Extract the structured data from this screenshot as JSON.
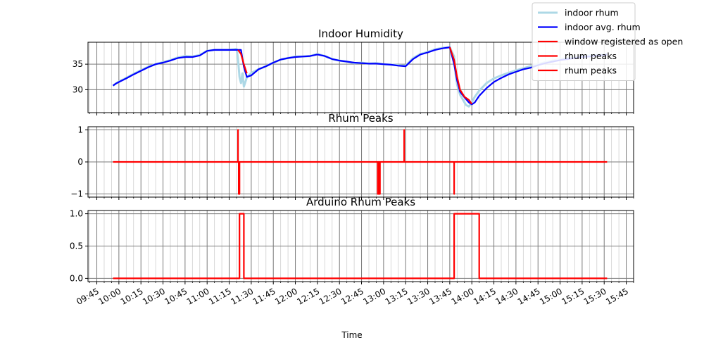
{
  "figure": {
    "xlabel": "Time",
    "x_ticks": [
      "09:45",
      "10:00",
      "10:15",
      "10:30",
      "10:45",
      "11:00",
      "11:15",
      "11:30",
      "11:45",
      "12:00",
      "12:15",
      "12:30",
      "12:45",
      "13:00",
      "13:15",
      "13:30",
      "13:45",
      "14:00",
      "14:15",
      "14:30",
      "14:45",
      "15:00",
      "15:15",
      "15:30",
      "15:45"
    ],
    "xlim": [
      "09:39",
      "15:50"
    ],
    "grid": true,
    "legend": {
      "placement": "top-right",
      "entries": [
        {
          "label": "indoor rhum",
          "color": "#add8e6"
        },
        {
          "label": "indoor avg. rhum",
          "color": "#0000ff"
        },
        {
          "label": "window registered as open",
          "color": "#ff0000"
        },
        {
          "label": "rhum peaks",
          "color": "#ff0000"
        },
        {
          "label": "rhum peaks",
          "color": "#ff0000"
        }
      ]
    }
  },
  "chart_data": [
    {
      "type": "line",
      "title": "Indoor Humidity",
      "ylim": [
        25.5,
        39.3
      ],
      "yticks": [
        30,
        35
      ],
      "ytick_labels": [
        "30",
        "35"
      ],
      "series": [
        {
          "name": "indoor rhum",
          "color": "#add8e6",
          "x": [
            "09:56",
            "09:58",
            "10:00",
            "10:05",
            "10:10",
            "10:15",
            "10:20",
            "10:25",
            "10:30",
            "10:35",
            "10:40",
            "10:45",
            "10:50",
            "10:55",
            "11:00",
            "11:05",
            "11:10",
            "11:15",
            "11:18",
            "11:20",
            "11:21",
            "11:22",
            "11:23",
            "11:24",
            "11:25",
            "11:27",
            "11:30",
            "11:35",
            "11:40",
            "11:45",
            "11:50",
            "11:55",
            "12:00",
            "12:05",
            "12:10",
            "12:15",
            "12:20",
            "12:25",
            "12:30",
            "12:35",
            "12:40",
            "12:45",
            "12:50",
            "12:55",
            "13:00",
            "13:05",
            "13:10",
            "13:15",
            "13:20",
            "13:25",
            "13:30",
            "13:35",
            "13:40",
            "13:45",
            "13:48",
            "13:49",
            "13:50",
            "13:51",
            "13:52",
            "13:54",
            "13:56",
            "13:58",
            "14:00",
            "14:02",
            "14:05",
            "14:10",
            "14:15",
            "14:20",
            "14:25",
            "14:30",
            "14:35",
            "14:40",
            "14:45",
            "14:50",
            "14:55",
            "15:00",
            "15:05",
            "15:10",
            "15:15",
            "15:20",
            "15:25",
            "15:30",
            "15:32"
          ],
          "values": [
            30.8,
            31.2,
            31.6,
            32.3,
            33.1,
            33.8,
            34.5,
            35.0,
            35.4,
            35.8,
            36.3,
            36.6,
            36.5,
            36.8,
            37.6,
            37.8,
            37.8,
            37.8,
            37.9,
            38.0,
            36.0,
            32.5,
            31.3,
            33.2,
            30.6,
            32.4,
            33.3,
            34.0,
            34.6,
            35.3,
            35.9,
            36.2,
            36.5,
            36.5,
            36.6,
            37.0,
            36.6,
            36.0,
            35.7,
            35.5,
            35.2,
            35.3,
            35.1,
            35.2,
            35.0,
            34.9,
            34.8,
            34.7,
            36.2,
            37.0,
            37.4,
            37.9,
            38.2,
            38.3,
            36.5,
            33.0,
            31.0,
            30.0,
            29.0,
            28.0,
            27.0,
            26.7,
            27.5,
            28.6,
            29.8,
            31.3,
            32.2,
            32.8,
            33.3,
            33.8,
            34.2,
            34.6,
            35.0,
            35.4,
            35.7,
            36.0,
            36.2,
            36.4,
            36.6,
            36.7,
            36.8,
            36.9,
            37.0
          ]
        },
        {
          "name": "indoor avg. rhum",
          "color": "#0000ff",
          "x": [
            "09:56",
            "09:58",
            "10:00",
            "10:05",
            "10:10",
            "10:15",
            "10:20",
            "10:25",
            "10:30",
            "10:35",
            "10:40",
            "10:45",
            "10:50",
            "10:55",
            "11:00",
            "11:05",
            "11:10",
            "11:15",
            "11:20",
            "11:21",
            "11:23",
            "11:25",
            "11:27",
            "11:30",
            "11:35",
            "11:40",
            "11:45",
            "11:50",
            "11:55",
            "12:00",
            "12:05",
            "12:10",
            "12:15",
            "12:20",
            "12:25",
            "12:30",
            "12:35",
            "12:40",
            "12:45",
            "12:50",
            "12:55",
            "13:00",
            "13:05",
            "13:10",
            "13:15",
            "13:20",
            "13:25",
            "13:30",
            "13:35",
            "13:40",
            "13:45",
            "13:48",
            "13:50",
            "13:52",
            "13:55",
            "13:58",
            "14:00",
            "14:02",
            "14:05",
            "14:10",
            "14:15",
            "14:20",
            "14:25",
            "14:30",
            "14:35",
            "14:40",
            "14:45",
            "14:50",
            "14:55",
            "15:00",
            "15:05",
            "15:10",
            "15:15",
            "15:20",
            "15:25",
            "15:30",
            "15:32"
          ],
          "values": [
            30.8,
            31.2,
            31.5,
            32.2,
            33.0,
            33.7,
            34.4,
            35.0,
            35.3,
            35.7,
            36.2,
            36.4,
            36.4,
            36.7,
            37.6,
            37.8,
            37.8,
            37.8,
            37.8,
            37.8,
            37.8,
            34.5,
            32.5,
            32.8,
            34.0,
            34.6,
            35.3,
            35.9,
            36.2,
            36.4,
            36.5,
            36.6,
            36.9,
            36.6,
            36.0,
            35.7,
            35.5,
            35.3,
            35.2,
            35.1,
            35.1,
            35.0,
            34.9,
            34.7,
            34.6,
            36.0,
            36.9,
            37.3,
            37.8,
            38.1,
            38.3,
            35.0,
            31.8,
            29.6,
            28.5,
            27.5,
            27.1,
            27.5,
            28.8,
            30.3,
            31.5,
            32.3,
            33.0,
            33.5,
            34.0,
            34.3,
            34.8,
            35.2,
            35.5,
            35.8,
            36.0,
            36.2,
            36.4,
            36.5,
            36.7,
            36.8,
            36.9
          ]
        },
        {
          "name": "window registered as open",
          "color": "#ff0000",
          "segments": [
            {
              "x": [
                "11:21",
                "11:23",
                "11:25",
                "11:27"
              ],
              "values": [
                37.8,
                37.0,
                35.0,
                33.2
              ]
            },
            {
              "x": [
                "13:45",
                "13:48",
                "13:50",
                "13:52",
                "13:55",
                "13:58",
                "14:00"
              ],
              "values": [
                38.3,
                35.8,
                32.5,
                30.0,
                28.6,
                28.0,
                27.2
              ]
            }
          ]
        }
      ]
    },
    {
      "type": "line",
      "title": "Rhum Peaks",
      "ylim": [
        -1.1,
        1.1
      ],
      "yticks": [
        -1,
        0,
        1
      ],
      "ytick_labels": [
        "−1",
        "0",
        "1"
      ],
      "series": [
        {
          "name": "",
          "color": "#ff0000",
          "x": [
            "09:56",
            "11:21",
            "11:21",
            "11:21",
            "11:21.5",
            "11:21.5",
            "11:22",
            "11:22",
            "11:22",
            "12:56",
            "12:56",
            "12:56",
            "12:56.5",
            "12:56.5",
            "12:56.5",
            "12:57",
            "12:57",
            "12:57",
            "12:57.5",
            "12:57.5",
            "12:57.5",
            "13:14",
            "13:14",
            "13:14",
            "13:48",
            "13:48",
            "13:48",
            "15:32"
          ],
          "values": [
            0,
            0,
            1,
            0,
            0,
            -1,
            -1,
            0,
            0,
            0,
            -1,
            0,
            0,
            -1,
            0,
            0,
            -1,
            0,
            0,
            -1,
            0,
            0,
            1,
            0,
            0,
            -1,
            0,
            0
          ]
        }
      ]
    },
    {
      "type": "line",
      "title": "Arduino Rhum Peaks",
      "ylim": [
        -0.05,
        1.05
      ],
      "yticks": [
        0,
        0.5,
        1.0
      ],
      "ytick_labels": [
        "0.0",
        "0.5",
        "1.0"
      ],
      "series": [
        {
          "name": "",
          "color": "#ff0000",
          "x": [
            "09:56",
            "11:22",
            "11:22",
            "11:25",
            "11:25",
            "13:48",
            "13:48",
            "14:05",
            "14:05",
            "15:32"
          ],
          "values": [
            0,
            0,
            1,
            1,
            0,
            0,
            1,
            1,
            0,
            0
          ]
        }
      ]
    }
  ]
}
